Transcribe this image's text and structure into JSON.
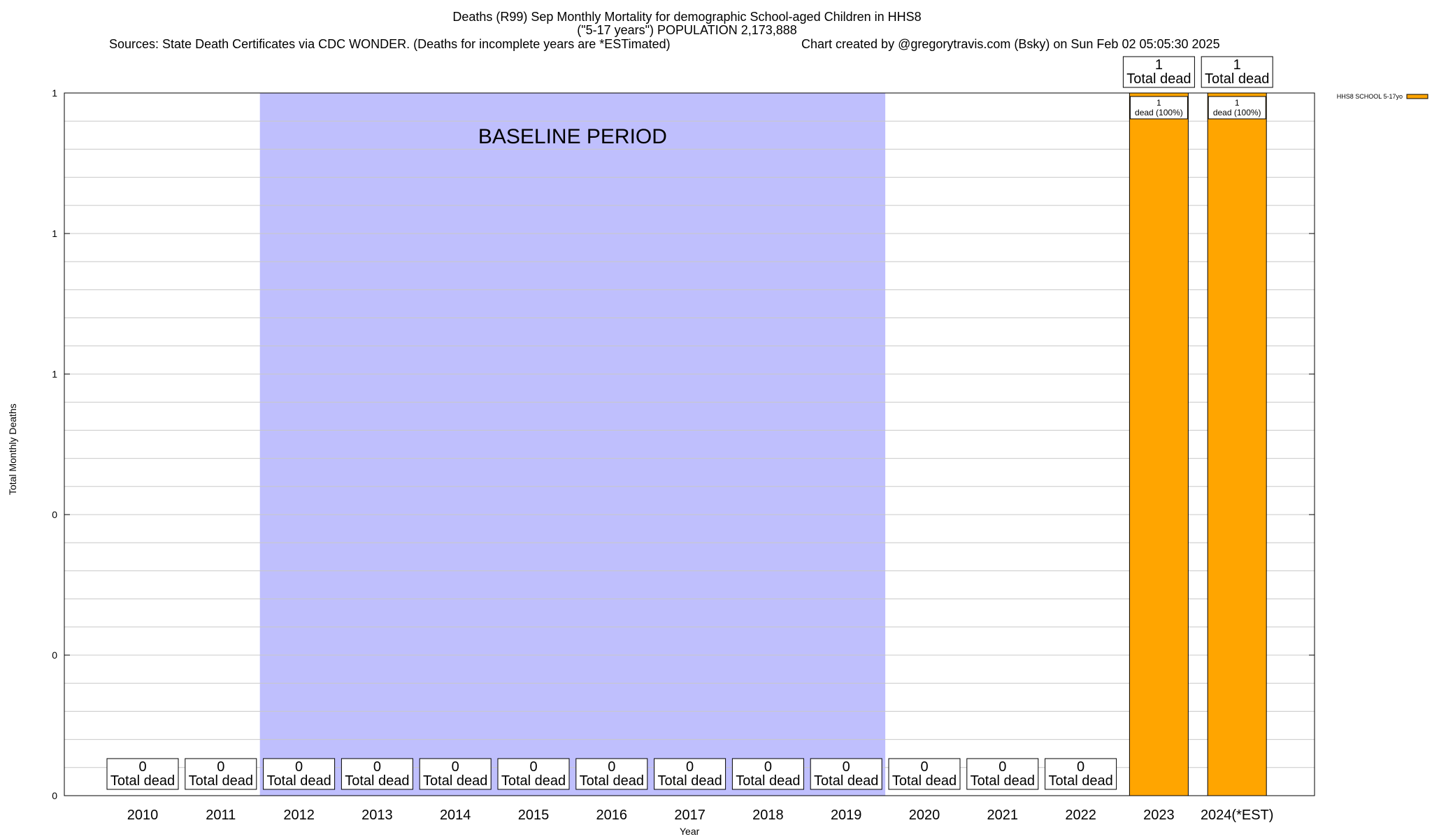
{
  "header": {
    "title_line1": "Deaths (R99) Sep Monthly Mortality for demographic School-aged Children in HHS8",
    "title_line2": "(\"5-17 years\") POPULATION 2,173,888",
    "sources": "Sources: State Death Certificates via CDC WONDER. (Deaths for incomplete years are *ESTimated)",
    "credit": "Chart created by @gregorytravis.com (Bsky) on Sun Feb 02 05:05:30 2025"
  },
  "chart_data": {
    "type": "bar",
    "xlabel": "Year",
    "ylabel": "Total Monthly Deaths",
    "ylim": [
      0,
      1
    ],
    "yticks": [
      "0",
      "0",
      "0",
      "1",
      "1",
      "1"
    ],
    "categories": [
      "2010",
      "2011",
      "2012",
      "2013",
      "2014",
      "2015",
      "2016",
      "2017",
      "2018",
      "2019",
      "2020",
      "2021",
      "2022",
      "2023",
      "2024(*EST)"
    ],
    "series": [
      {
        "name": "HHS8 SCHOOL 5-17yo",
        "color": "#ffa500",
        "values": [
          0,
          0,
          0,
          0,
          0,
          0,
          0,
          0,
          0,
          0,
          0,
          0,
          0,
          1,
          1
        ]
      }
    ],
    "total_labels": [
      "0",
      "0",
      "0",
      "0",
      "0",
      "0",
      "0",
      "0",
      "0",
      "0",
      "0",
      "0",
      "0",
      "1",
      "1"
    ],
    "total_suffix": "Total dead",
    "segment_labels": [
      "",
      "",
      "",
      "",
      "",
      "",
      "",
      "",
      "",
      "",
      "",
      "",
      "",
      "1\ndead (100%)",
      "1\ndead (100%)"
    ],
    "baseline": {
      "label": "BASELINE PERIOD",
      "start": "2012",
      "end": "2019",
      "color": "#bfbffd"
    },
    "grid": true,
    "legend_position": "top-right"
  }
}
